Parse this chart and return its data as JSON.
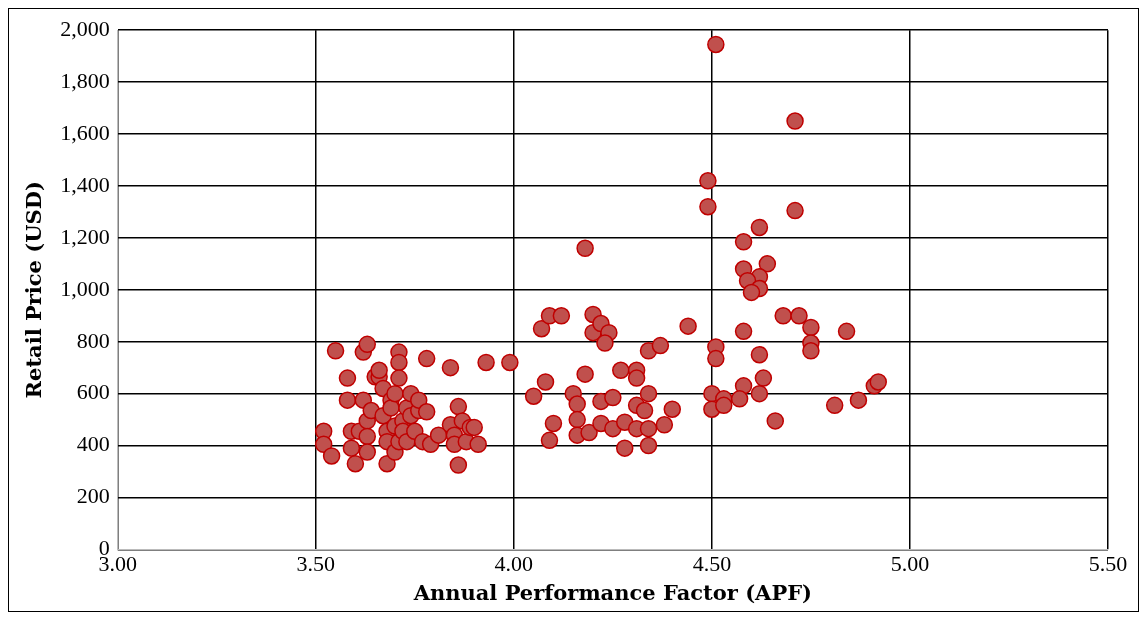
{
  "chart_data": {
    "type": "scatter",
    "xlabel": "Annual Performance Factor (APF)",
    "ylabel": "Retail Price (USD)",
    "xlim": [
      3,
      5.5
    ],
    "xticks": [
      {
        "value": 3,
        "label": "3.00"
      },
      {
        "value": 3.5,
        "label": "3.50"
      },
      {
        "value": 4,
        "label": "4.00"
      },
      {
        "value": 4.5,
        "label": "4.50"
      },
      {
        "value": 5,
        "label": "5.00"
      },
      {
        "value": 5.5,
        "label": "5.50"
      }
    ],
    "ylim": [
      0,
      2000
    ],
    "yticks": [
      0,
      200,
      400,
      600,
      800,
      {
        "value": 1000,
        "label": "1,000"
      },
      {
        "value": 1200,
        "label": "1,200"
      },
      {
        "value": 1400,
        "label": "1,400"
      },
      {
        "value": 1600,
        "label": "1,600"
      },
      {
        "value": 1800,
        "label": "1,800"
      },
      {
        "value": 2000,
        "label": "2,000"
      }
    ],
    "grid": true,
    "legend": false,
    "marker": "circle",
    "series": [
      {
        "color": "#c0504d",
        "x": [
          3.52,
          3.52,
          3.54,
          3.55,
          3.58,
          3.58,
          3.59,
          3.59,
          3.6,
          3.61,
          3.62,
          3.63,
          3.62,
          3.63,
          3.63,
          3.63,
          3.64,
          3.65,
          3.66,
          3.66,
          3.67,
          3.67,
          3.68,
          3.68,
          3.68,
          3.69,
          3.69,
          3.7,
          3.7,
          3.7,
          3.71,
          3.71,
          3.71,
          3.71,
          3.72,
          3.72,
          3.73,
          3.73,
          3.74,
          3.74,
          3.75,
          3.76,
          3.76,
          3.77,
          3.78,
          3.78,
          3.79,
          3.81,
          3.84,
          3.84,
          3.85,
          3.85,
          3.86,
          3.86,
          3.87,
          3.88,
          3.89,
          3.9,
          3.91,
          3.93,
          3.99,
          4.05,
          4.08,
          4.07,
          4.09,
          4.12,
          4.1,
          4.09,
          4.18,
          4.15,
          4.16,
          4.16,
          4.16,
          4.19,
          4.2,
          4.2,
          4.22,
          4.24,
          4.23,
          4.22,
          4.25,
          4.22,
          4.25,
          4.27,
          4.31,
          4.31,
          4.28,
          4.28,
          4.31,
          4.33,
          4.34,
          4.31,
          4.34,
          4.34,
          4.38,
          4.4,
          4.34,
          4.37,
          4.44,
          4.18,
          4.51,
          4.71,
          4.49,
          4.49,
          4.71,
          4.62,
          4.58,
          4.64,
          4.58,
          4.62,
          4.59,
          4.62,
          4.6,
          4.58,
          4.68,
          4.72,
          4.75,
          4.75,
          4.75,
          4.84,
          4.51,
          4.51,
          4.62,
          4.63,
          4.58,
          4.5,
          4.53,
          4.62,
          4.57,
          4.5,
          4.53,
          4.66,
          4.81,
          4.87,
          4.91,
          4.92
        ],
        "values": [
          455,
          405,
          360,
          765,
          660,
          575,
          455,
          390,
          330,
          455,
          760,
          790,
          575,
          495,
          435,
          375,
          535,
          665,
          665,
          690,
          620,
          515,
          455,
          330,
          415,
          575,
          545,
          375,
          600,
          475,
          415,
          760,
          720,
          660,
          495,
          455,
          545,
          415,
          600,
          515,
          455,
          535,
          575,
          415,
          735,
          530,
          405,
          440,
          700,
          480,
          440,
          405,
          325,
          550,
          495,
          415,
          470,
          470,
          405,
          720,
          720,
          590,
          645,
          850,
          900,
          900,
          485,
          420,
          675,
          600,
          560,
          500,
          440,
          450,
          905,
          835,
          870,
          835,
          795,
          570,
          585,
          485,
          465,
          690,
          690,
          660,
          390,
          490,
          555,
          535,
          600,
          465,
          465,
          400,
          480,
          540,
          765,
          785,
          860,
          1160,
          1945,
          1650,
          1420,
          1320,
          1305,
          1240,
          1185,
          1100,
          1080,
          1050,
          1035,
          1005,
          990,
          840,
          900,
          900,
          855,
          795,
          765,
          840,
          780,
          735,
          750,
          660,
          630,
          600,
          580,
          600,
          580,
          540,
          555,
          495,
          555,
          575,
          630,
          645
        ]
      }
    ]
  }
}
